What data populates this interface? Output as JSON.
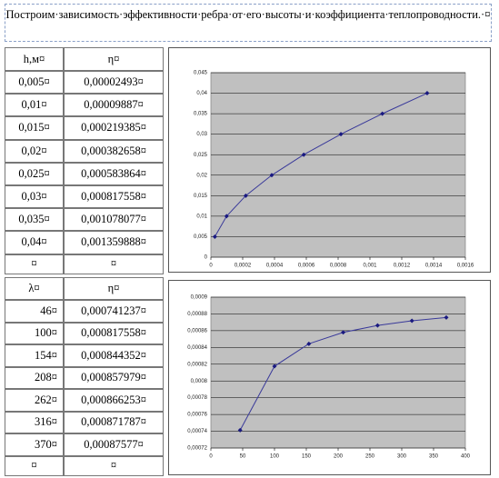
{
  "title": "Построим·зависимость·эффективности·ребра·от·его·высоты·и·коэффициента·теплопроводности.·¤",
  "tables": [
    {
      "header": [
        "h,м¤",
        "η¤"
      ],
      "rows": [
        [
          "0,005¤",
          "0,00002493¤"
        ],
        [
          "0,01¤",
          "0,00009887¤"
        ],
        [
          "0,015¤",
          "0,000219385¤"
        ],
        [
          "0,02¤",
          "0,000382658¤"
        ],
        [
          "0,025¤",
          "0,000583864¤"
        ],
        [
          "0,03¤",
          "0,000817558¤"
        ],
        [
          "0,035¤",
          "0,001078077¤"
        ],
        [
          "0,04¤",
          "0,001359888¤"
        ],
        [
          "¤",
          "¤"
        ]
      ]
    },
    {
      "header": [
        "λ¤",
        "η¤"
      ],
      "rows": [
        [
          "46¤",
          "0,000741237¤"
        ],
        [
          "100¤",
          "0,000817558¤"
        ],
        [
          "154¤",
          "0,000844352¤"
        ],
        [
          "208¤",
          "0,000857979¤"
        ],
        [
          "262¤",
          "0,000866253¤"
        ],
        [
          "316¤",
          "0,000871787¤"
        ],
        [
          "370¤",
          "0,00087577¤"
        ],
        [
          "¤",
          "¤"
        ]
      ]
    }
  ],
  "chart_data": [
    {
      "type": "scatter",
      "color": "#3a3a9a",
      "background": "#c0c0c0",
      "grid": true,
      "x": [
        2.493e-05,
        9.887e-05,
        0.000219385,
        0.000382658,
        0.000583864,
        0.000817558,
        0.001078077,
        0.001359888
      ],
      "values": [
        0.005,
        0.01,
        0.015,
        0.02,
        0.025,
        0.03,
        0.035,
        0.04
      ],
      "xlim": [
        0,
        0.0016
      ],
      "ylim": [
        0,
        0.045
      ],
      "xticks": [
        0,
        {
          "value": 0.0002,
          "label": "0,0002"
        },
        {
          "value": 0.0004,
          "label": "0,0004"
        },
        {
          "value": 0.0006,
          "label": "0,0006"
        },
        {
          "value": 0.0008,
          "label": "0,0008"
        },
        {
          "value": 0.001,
          "label": "0,001"
        },
        {
          "value": 0.0012,
          "label": "0,0012"
        },
        {
          "value": 0.0014,
          "label": "0,0014"
        },
        {
          "value": 0.0016,
          "label": "0,0016"
        }
      ],
      "yticks": [
        0,
        {
          "value": 0.005,
          "label": "0,005"
        },
        {
          "value": 0.01,
          "label": "0,01"
        },
        {
          "value": 0.015,
          "label": "0,015"
        },
        {
          "value": 0.02,
          "label": "0,02"
        },
        {
          "value": 0.025,
          "label": "0,025"
        },
        {
          "value": 0.03,
          "label": "0,03"
        },
        {
          "value": 0.035,
          "label": "0,035"
        },
        {
          "value": 0.04,
          "label": "0,04"
        },
        {
          "value": 0.045,
          "label": "0,045"
        }
      ]
    },
    {
      "type": "scatter",
      "color": "#3a3a9a",
      "background": "#c0c0c0",
      "grid": true,
      "x": [
        46,
        100,
        154,
        208,
        262,
        316,
        370
      ],
      "values": [
        0.000741237,
        0.000817558,
        0.000844352,
        0.000857979,
        0.000866253,
        0.000871787,
        0.00087577
      ],
      "xlim": [
        0,
        400
      ],
      "ylim": [
        0.00072,
        0.0009
      ],
      "xticks": [
        0,
        50,
        100,
        150,
        200,
        250,
        300,
        350,
        400
      ],
      "yticks": [
        {
          "value": 0.00072,
          "label": "0,00072"
        },
        {
          "value": 0.00074,
          "label": "0,00074"
        },
        {
          "value": 0.00076,
          "label": "0,00076"
        },
        {
          "value": 0.00078,
          "label": "0,00078"
        },
        {
          "value": 0.0008,
          "label": "0,0008"
        },
        {
          "value": 0.00082,
          "label": "0,00082"
        },
        {
          "value": 0.00084,
          "label": "0,00084"
        },
        {
          "value": 0.00086,
          "label": "0,00086"
        },
        {
          "value": 0.00088,
          "label": "0,00088"
        },
        {
          "value": 0.0009,
          "label": "0,0009"
        }
      ]
    }
  ]
}
